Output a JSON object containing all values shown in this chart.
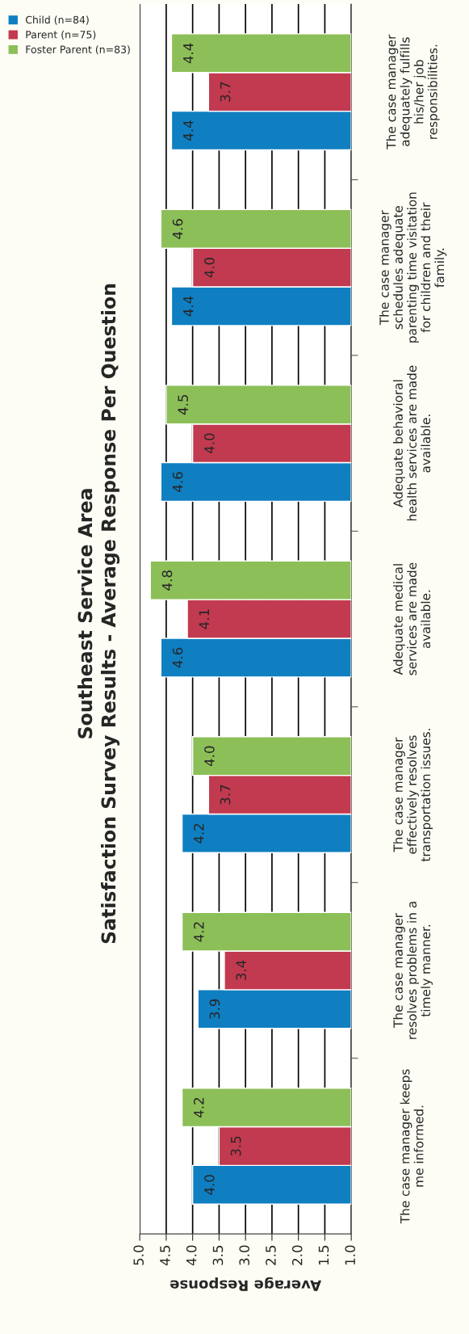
{
  "chart_data": {
    "type": "bar",
    "orientation": "horizontal",
    "title": "Southeast Service Area",
    "subtitle": "Satisfaction Survey Results - Average Response Per Question",
    "xlabel": "Average Response",
    "categories": [
      "The case manager\nadequately fulfills\nhis/her job\nresponsibilities.",
      "The case manager\nschedules adequate\nparenting time visitation\nfor children and their\nfamily.",
      "Adequate behavioral\nhealth services are made\navailable.",
      "Adequate medical\nservices are made\navailable.",
      "The case manager\neffectively resolves\ntransportation issues.",
      "The case manager\nresolves problems in a\ntimely manner.",
      "The case manager keeps\nme informed."
    ],
    "series": [
      {
        "name": "Child (n=84)",
        "color": "#0f7fc1",
        "values": [
          4.4,
          4.4,
          4.6,
          4.6,
          4.2,
          3.9,
          4.0
        ],
        "value_labels": [
          "4.4",
          "4.4",
          "4.6",
          "4.6",
          "4.2",
          "3.9",
          "4.0"
        ]
      },
      {
        "name": "Parent (n=75)",
        "color": "#c13a4f",
        "values": [
          3.7,
          4.0,
          4.0,
          4.1,
          3.7,
          3.4,
          3.5
        ],
        "value_labels": [
          "3.7",
          "4.0",
          "4.0",
          "4.1",
          "3.7",
          "3.4",
          "3.5"
        ]
      },
      {
        "name": "Foster Parent (n=83)",
        "color": "#8dbf58",
        "values": [
          4.4,
          4.6,
          4.5,
          4.8,
          4.0,
          4.2,
          4.2
        ],
        "value_labels": [
          "4.4",
          "4.6",
          "4.5",
          "4.8",
          "4.0",
          "4.2",
          "4.2"
        ]
      }
    ],
    "xlim": [
      5.0,
      1.0
    ],
    "xticks": [
      {
        "value": 5.0,
        "label": "5.0"
      },
      {
        "value": 4.5,
        "label": "4.5"
      },
      {
        "value": 4.0,
        "label": "4.0"
      },
      {
        "value": 3.5,
        "label": "3.5"
      },
      {
        "value": 3.0,
        "label": "3.0"
      },
      {
        "value": 2.5,
        "label": "2.5"
      },
      {
        "value": 2.0,
        "label": "2.0"
      },
      {
        "value": 1.5,
        "label": "1.5"
      },
      {
        "value": 1.0,
        "label": "1.0"
      }
    ],
    "grid": "x",
    "legend": "top left"
  }
}
